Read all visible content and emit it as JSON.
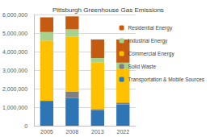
{
  "chart_data": {
    "type": "bar",
    "title": "Pittsburgh Greenhouse Gas Emissions",
    "stacked": true,
    "grid": true,
    "legend": "right",
    "categories": [
      "2005",
      "2008",
      "2013",
      "2022"
    ],
    "series": [
      {
        "name": "Transportation & Mobile Sources",
        "color": "#2e75b6",
        "values": [
          1300000,
          1500000,
          850000,
          1150000
        ]
      },
      {
        "name": "Solid Waste",
        "color": "#7f7f7f",
        "values": [
          50000,
          350000,
          50000,
          100000
        ]
      },
      {
        "name": "Commercial Energy",
        "color": "#ffc000",
        "values": [
          3250000,
          2950000,
          2500000,
          1800000
        ]
      },
      {
        "name": "Industrial Energy",
        "color": "#a9d18e",
        "values": [
          450000,
          400000,
          250000,
          350000
        ]
      },
      {
        "name": "Residential Energy",
        "color": "#c55a11",
        "values": [
          800000,
          700000,
          1000000,
          1250000
        ]
      }
    ],
    "ylim": [
      0,
      6000000
    ],
    "yticks": [
      0,
      {
        "value": 1000000,
        "label": "1,000,000"
      },
      {
        "value": 2000000,
        "label": "2,000,000"
      },
      {
        "value": 3000000,
        "label": "3,000,000"
      },
      {
        "value": 4000000,
        "label": "4,000,000"
      },
      {
        "value": 5000000,
        "label": "5,000,000"
      },
      {
        "value": 6000000,
        "label": "6,000,000"
      }
    ]
  }
}
